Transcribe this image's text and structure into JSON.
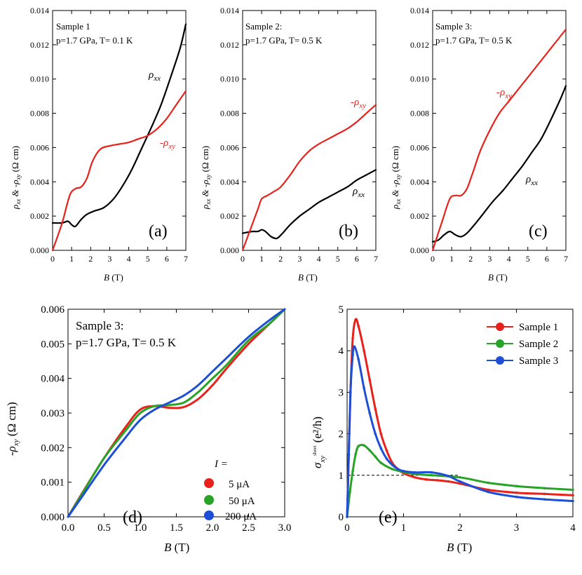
{
  "colors": {
    "red": "#e8221b",
    "black": "#000000",
    "green": "#27a327",
    "blue": "#1d4fd6"
  },
  "chart_data": [
    {
      "type": "line",
      "id": "a",
      "panel_label": "(a)",
      "ylabel_main": "ρ",
      "ylabel_rest": " & -ρ",
      "ylabel_units": " (Ω cm)",
      "xlabel": "B",
      "xunit": " (T)",
      "annotation_l1": "Sample 1",
      "annotation_l2": "p=1.7 GPa, T= 0.1 K",
      "xlim": [
        0,
        7
      ],
      "ylim": [
        0,
        0.014
      ],
      "xticks": [
        "0",
        "1",
        "2",
        "3",
        "4",
        "5",
        "6",
        "7"
      ],
      "yticks": [
        "0.000",
        "0.002",
        "0.004",
        "0.006",
        "0.008",
        "0.010",
        "0.012",
        "0.014"
      ],
      "series": [
        {
          "name": "ρxx",
          "label": "ρ",
          "sub": "xx",
          "color": "black",
          "x": [
            0,
            0.5,
            0.8,
            1.0,
            1.2,
            1.5,
            1.8,
            2.2,
            2.7,
            3.2,
            3.7,
            4.2,
            4.7,
            5.2,
            5.7,
            6.2,
            6.7,
            7.0
          ],
          "y": [
            0.0016,
            0.0016,
            0.0017,
            0.0015,
            0.0014,
            0.0018,
            0.0021,
            0.0023,
            0.0025,
            0.003,
            0.0038,
            0.0048,
            0.006,
            0.0072,
            0.0085,
            0.0101,
            0.0118,
            0.0132
          ]
        },
        {
          "name": "-ρxy",
          "label": "-ρ",
          "sub": "xy",
          "color": "red",
          "x": [
            0,
            0.5,
            0.9,
            1.2,
            1.5,
            1.8,
            2.1,
            2.5,
            3.0,
            3.5,
            4.0,
            4.5,
            5.0,
            5.5,
            6.0,
            6.5,
            7.0
          ],
          "y": [
            0,
            0.0016,
            0.0032,
            0.0036,
            0.0037,
            0.0042,
            0.0052,
            0.0059,
            0.0061,
            0.0062,
            0.0063,
            0.0065,
            0.0067,
            0.0071,
            0.0077,
            0.0085,
            0.0093
          ]
        }
      ]
    },
    {
      "type": "line",
      "id": "b",
      "panel_label": "(b)",
      "ylabel_main": "ρ",
      "ylabel_rest": " & -ρ",
      "ylabel_units": " (Ω cm)",
      "xlabel": "B",
      "xunit": " (T)",
      "annotation_l1": "Sample 2:",
      "annotation_l2": "p=1.7 GPa, T= 0.5 K",
      "xlim": [
        0,
        7
      ],
      "ylim": [
        0,
        0.014
      ],
      "xticks": [
        "0",
        "1",
        "2",
        "3",
        "4",
        "5",
        "6",
        "7"
      ],
      "yticks": [
        "0.000",
        "0.002",
        "0.004",
        "0.006",
        "0.008",
        "0.010",
        "0.012",
        "0.014"
      ],
      "series": [
        {
          "name": "ρxx",
          "label": "ρ",
          "sub": "xx",
          "color": "black",
          "x": [
            0,
            0.5,
            0.8,
            1.0,
            1.2,
            1.5,
            1.8,
            2.1,
            2.5,
            3.0,
            3.5,
            4.0,
            4.5,
            5.0,
            5.5,
            6.0,
            6.5,
            7.0
          ],
          "y": [
            0.001,
            0.0011,
            0.0011,
            0.0012,
            0.0011,
            0.0008,
            0.0007,
            0.001,
            0.0015,
            0.002,
            0.0024,
            0.0028,
            0.0031,
            0.0034,
            0.0037,
            0.0041,
            0.0044,
            0.0047
          ]
        },
        {
          "name": "-ρxy",
          "label": "-ρ",
          "sub": "xy",
          "color": "red",
          "x": [
            0,
            0.5,
            0.8,
            1.0,
            1.3,
            1.6,
            2.0,
            2.5,
            3.0,
            3.5,
            4.0,
            4.5,
            5.0,
            5.5,
            6.0,
            6.5,
            7.0
          ],
          "y": [
            0,
            0.0015,
            0.0024,
            0.003,
            0.0032,
            0.0034,
            0.0037,
            0.0044,
            0.0052,
            0.0058,
            0.0062,
            0.0065,
            0.0068,
            0.0071,
            0.0075,
            0.008,
            0.0085
          ]
        }
      ]
    },
    {
      "type": "line",
      "id": "c",
      "panel_label": "(c)",
      "ylabel_main": "ρ",
      "ylabel_rest": " & -ρ",
      "ylabel_units": " (Ω cm)",
      "xlabel": "B",
      "xunit": " (T)",
      "annotation_l1": "Sample 3:",
      "annotation_l2": "p=1.7 GPa, T= 0.5 K",
      "xlim": [
        0,
        7
      ],
      "ylim": [
        0,
        0.014
      ],
      "xticks": [
        "0",
        "1",
        "2",
        "3",
        "4",
        "5",
        "6",
        "7"
      ],
      "yticks": [
        "0.000",
        "0.002",
        "0.004",
        "0.006",
        "0.008",
        "0.010",
        "0.012",
        "0.014"
      ],
      "series": [
        {
          "name": "ρxx",
          "label": "ρ",
          "sub": "xx",
          "color": "black",
          "x": [
            0,
            0.3,
            0.6,
            0.9,
            1.2,
            1.5,
            1.8,
            2.2,
            2.7,
            3.2,
            3.7,
            4.2,
            4.7,
            5.2,
            5.7,
            6.2,
            6.7,
            7.0
          ],
          "y": [
            0.0005,
            0.0006,
            0.0009,
            0.0011,
            0.0009,
            0.0008,
            0.001,
            0.0015,
            0.0022,
            0.0029,
            0.0035,
            0.0042,
            0.0049,
            0.0057,
            0.0065,
            0.0076,
            0.0088,
            0.0096
          ]
        },
        {
          "name": "-ρxy",
          "label": "-ρ",
          "sub": "xy",
          "color": "red",
          "x": [
            0,
            0.5,
            0.9,
            1.2,
            1.5,
            1.8,
            2.1,
            2.5,
            3.0,
            3.5,
            4.0,
            4.5,
            5.0,
            5.5,
            6.0,
            6.5,
            7.0
          ],
          "y": [
            0,
            0.0017,
            0.003,
            0.0032,
            0.0032,
            0.0036,
            0.0045,
            0.0058,
            0.007,
            0.008,
            0.0087,
            0.0094,
            0.0101,
            0.0108,
            0.0115,
            0.0122,
            0.0129
          ]
        }
      ]
    },
    {
      "type": "line",
      "id": "d",
      "panel_label": "(d)",
      "ylabel": "-ρ",
      "ylabel_sub": "xy",
      "ylabel_units": " (Ω cm)",
      "xlabel": "B",
      "xunit": " (T)",
      "annotation_l1": "Sample 3:",
      "annotation_l2": "p=1.7 GPa, T= 0.5 K",
      "legend_title": "I =",
      "xlim": [
        0,
        3.0
      ],
      "ylim": [
        0,
        0.006
      ],
      "xticks": [
        "0.0",
        "0.5",
        "1.0",
        "1.5",
        "2.0",
        "2.5",
        "3.0"
      ],
      "yticks": [
        "0.000",
        "0.001",
        "0.002",
        "0.003",
        "0.004",
        "0.005",
        "0.006"
      ],
      "series": [
        {
          "name": "5  μA",
          "color": "red",
          "x": [
            0,
            0.2,
            0.5,
            0.8,
            1.0,
            1.2,
            1.4,
            1.6,
            1.8,
            2.0,
            2.2,
            2.5,
            2.8,
            3.0
          ],
          "y": [
            0,
            0.0007,
            0.0017,
            0.0026,
            0.0031,
            0.0032,
            0.00315,
            0.00317,
            0.0034,
            0.0038,
            0.0043,
            0.005,
            0.0056,
            0.006
          ]
        },
        {
          "name": "50 μA",
          "color": "green",
          "x": [
            0,
            0.2,
            0.5,
            0.8,
            1.0,
            1.2,
            1.4,
            1.6,
            1.8,
            2.0,
            2.2,
            2.5,
            2.8,
            3.0
          ],
          "y": [
            0,
            0.00068,
            0.0017,
            0.0025,
            0.003,
            0.0032,
            0.00323,
            0.0033,
            0.0036,
            0.004,
            0.0044,
            0.0051,
            0.0056,
            0.006
          ]
        },
        {
          "name": "200 μA",
          "color": "blue",
          "x": [
            0,
            0.2,
            0.5,
            0.8,
            1.0,
            1.2,
            1.4,
            1.6,
            1.8,
            2.0,
            2.2,
            2.5,
            2.8,
            3.0
          ],
          "y": [
            0,
            0.0006,
            0.0015,
            0.0023,
            0.0028,
            0.0031,
            0.0033,
            0.0035,
            0.0038,
            0.0042,
            0.0046,
            0.0052,
            0.0057,
            0.006
          ]
        }
      ]
    },
    {
      "type": "line",
      "id": "e",
      "panel_label": "(e)",
      "ylabel_sym": "σ",
      "ylabel_sub": "xy",
      "ylabel_sup": "sheet",
      "ylabel_units": " (e²/h)",
      "xlabel": "B",
      "xunit": " (T)",
      "xlim": [
        0,
        4
      ],
      "ylim": [
        0,
        5
      ],
      "xticks": [
        "0",
        "1",
        "2",
        "3",
        "4"
      ],
      "yticks": [
        "0",
        "1",
        "2",
        "3",
        "4",
        "5"
      ],
      "reference_line": {
        "y": 1,
        "x": [
          0,
          2
        ]
      },
      "series": [
        {
          "name": "Sample 1",
          "color": "red",
          "x": [
            0,
            0.03,
            0.06,
            0.1,
            0.15,
            0.2,
            0.3,
            0.4,
            0.5,
            0.6,
            0.7,
            0.8,
            0.9,
            1.0,
            1.2,
            1.4,
            1.6,
            1.8,
            2.0,
            2.5,
            3.0,
            3.5,
            4.0
          ],
          "y": [
            0,
            1.5,
            3.0,
            4.3,
            4.75,
            4.6,
            4.0,
            3.3,
            2.6,
            2.0,
            1.6,
            1.3,
            1.15,
            1.05,
            0.95,
            0.9,
            0.88,
            0.85,
            0.8,
            0.65,
            0.58,
            0.55,
            0.52
          ]
        },
        {
          "name": "Sample 2",
          "color": "green",
          "x": [
            0,
            0.05,
            0.1,
            0.15,
            0.2,
            0.3,
            0.4,
            0.5,
            0.6,
            0.8,
            1.0,
            1.2,
            1.5,
            2.0,
            2.5,
            3.0,
            3.5,
            4.0
          ],
          "y": [
            0,
            0.6,
            1.1,
            1.5,
            1.7,
            1.72,
            1.6,
            1.45,
            1.3,
            1.15,
            1.08,
            1.03,
            1.0,
            0.95,
            0.82,
            0.74,
            0.69,
            0.65
          ]
        },
        {
          "name": "Sample 3",
          "color": "blue",
          "x": [
            0,
            0.03,
            0.06,
            0.1,
            0.13,
            0.2,
            0.3,
            0.4,
            0.5,
            0.6,
            0.7,
            0.8,
            0.9,
            1.0,
            1.2,
            1.5,
            1.8,
            2.0,
            2.5,
            3.0,
            3.5,
            4.0
          ],
          "y": [
            0,
            1.5,
            3.0,
            3.9,
            4.1,
            3.8,
            3.1,
            2.5,
            2.0,
            1.65,
            1.4,
            1.25,
            1.15,
            1.1,
            1.07,
            1.07,
            0.98,
            0.85,
            0.6,
            0.48,
            0.42,
            0.38
          ]
        }
      ]
    }
  ]
}
